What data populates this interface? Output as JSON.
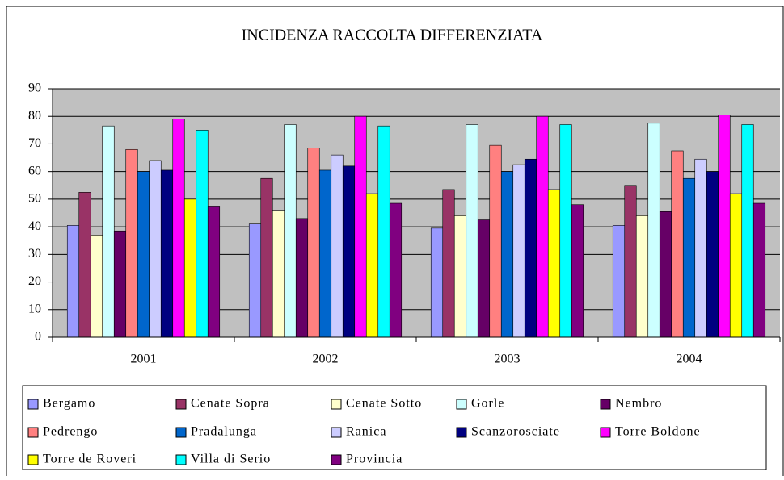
{
  "chart_data": {
    "type": "bar",
    "title": "INCIDENZA RACCOLTA DIFFERENZIATA",
    "categories": [
      "2001",
      "2002",
      "2003",
      "2004"
    ],
    "series": [
      {
        "name": "Bergamo",
        "color": "#9999ff",
        "values": [
          40.5,
          41,
          39.5,
          40.5
        ]
      },
      {
        "name": "Cenate Sopra",
        "color": "#993366",
        "values": [
          52.5,
          57.5,
          53.5,
          55
        ]
      },
      {
        "name": "Cenate Sotto",
        "color": "#ffffcc",
        "values": [
          37,
          46,
          44,
          44
        ]
      },
      {
        "name": "Gorle",
        "color": "#ccffff",
        "values": [
          76.5,
          77,
          77,
          77.5
        ]
      },
      {
        "name": "Nembro",
        "color": "#660066",
        "values": [
          38.5,
          43,
          42.5,
          45.5
        ]
      },
      {
        "name": "Pedrengo",
        "color": "#ff8080",
        "values": [
          68,
          68.5,
          69.5,
          67.5
        ]
      },
      {
        "name": "Pradalunga",
        "color": "#0066cc",
        "values": [
          60,
          60.5,
          60,
          57.5
        ]
      },
      {
        "name": "Ranica",
        "color": "#ccccff",
        "values": [
          64,
          66,
          62.5,
          64.5
        ]
      },
      {
        "name": "Scanzorosciate",
        "color": "#000080",
        "values": [
          60.5,
          62,
          64.5,
          60
        ]
      },
      {
        "name": "Torre Boldone",
        "color": "#ff00ff",
        "values": [
          79,
          80,
          80,
          80.5
        ]
      },
      {
        "name": "Torre de Roveri",
        "color": "#ffff00",
        "values": [
          50,
          52,
          53.5,
          52
        ]
      },
      {
        "name": "Villa di Serio",
        "color": "#00ffff",
        "values": [
          75,
          76.5,
          77,
          77
        ]
      },
      {
        "name": "Provincia",
        "color": "#800080",
        "values": [
          47.5,
          48.5,
          48,
          48.5
        ]
      }
    ],
    "ylim": [
      0,
      90
    ],
    "yticks": [
      0,
      10,
      20,
      30,
      40,
      50,
      60,
      70,
      80,
      90
    ],
    "grid": true,
    "legend": "bottom"
  }
}
